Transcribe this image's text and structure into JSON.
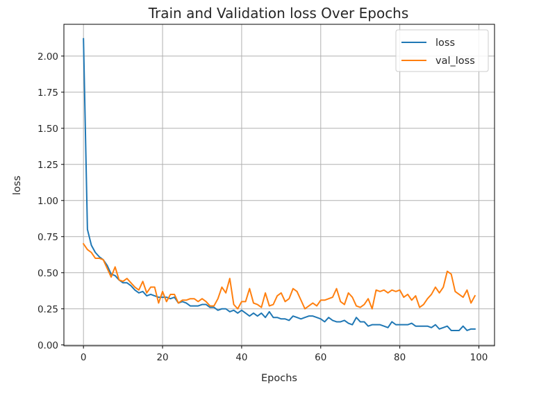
{
  "chart_data": {
    "type": "line",
    "title": "Train and Validation loss Over Epochs",
    "xlabel": "Epochs",
    "ylabel": "loss",
    "xlim": [
      -4.95,
      103.95
    ],
    "ylim": [
      -0.006,
      2.22
    ],
    "xticks": [
      0,
      20,
      40,
      60,
      80,
      100
    ],
    "yticks": [
      0.0,
      0.25,
      0.5,
      0.75,
      1.0,
      1.25,
      1.5,
      1.75,
      2.0
    ],
    "ytick_labels": [
      "0.00",
      "0.25",
      "0.50",
      "0.75",
      "1.00",
      "1.25",
      "1.50",
      "1.75",
      "2.00"
    ],
    "xtick_labels": [
      "0",
      "20",
      "40",
      "60",
      "80",
      "100"
    ],
    "grid": true,
    "legend_position": "top-right",
    "series": [
      {
        "name": "loss",
        "color": "#1f77b4",
        "x": [
          0,
          1,
          2,
          3,
          4,
          5,
          6,
          7,
          8,
          9,
          10,
          11,
          12,
          13,
          14,
          15,
          16,
          17,
          18,
          19,
          20,
          21,
          22,
          23,
          24,
          25,
          26,
          27,
          28,
          29,
          30,
          31,
          32,
          33,
          34,
          35,
          36,
          37,
          38,
          39,
          40,
          41,
          42,
          43,
          44,
          45,
          46,
          47,
          48,
          49,
          50,
          51,
          52,
          53,
          54,
          55,
          56,
          57,
          58,
          59,
          60,
          61,
          62,
          63,
          64,
          65,
          66,
          67,
          68,
          69,
          70,
          71,
          72,
          73,
          74,
          75,
          76,
          77,
          78,
          79,
          80,
          81,
          82,
          83,
          84,
          85,
          86,
          87,
          88,
          89,
          90,
          91,
          92,
          93,
          94,
          95,
          96,
          97,
          98,
          99
        ],
        "values": [
          2.12,
          0.8,
          0.69,
          0.64,
          0.61,
          0.59,
          0.55,
          0.49,
          0.48,
          0.45,
          0.43,
          0.43,
          0.41,
          0.38,
          0.36,
          0.37,
          0.34,
          0.35,
          0.34,
          0.33,
          0.33,
          0.33,
          0.32,
          0.33,
          0.29,
          0.3,
          0.29,
          0.27,
          0.27,
          0.27,
          0.28,
          0.28,
          0.26,
          0.26,
          0.24,
          0.25,
          0.25,
          0.23,
          0.24,
          0.22,
          0.24,
          0.22,
          0.2,
          0.22,
          0.2,
          0.22,
          0.19,
          0.23,
          0.19,
          0.19,
          0.18,
          0.18,
          0.17,
          0.2,
          0.19,
          0.18,
          0.19,
          0.2,
          0.2,
          0.19,
          0.18,
          0.16,
          0.19,
          0.17,
          0.16,
          0.16,
          0.17,
          0.15,
          0.14,
          0.19,
          0.16,
          0.16,
          0.13,
          0.14,
          0.14,
          0.14,
          0.13,
          0.12,
          0.16,
          0.14,
          0.14,
          0.14,
          0.14,
          0.15,
          0.13,
          0.13,
          0.13,
          0.13,
          0.12,
          0.14,
          0.11,
          0.12,
          0.13,
          0.1,
          0.1,
          0.1,
          0.13,
          0.1,
          0.11,
          0.11
        ]
      },
      {
        "name": "val_loss",
        "color": "#ff7f0e",
        "x": [
          0,
          1,
          2,
          3,
          4,
          5,
          6,
          7,
          8,
          9,
          10,
          11,
          12,
          13,
          14,
          15,
          16,
          17,
          18,
          19,
          20,
          21,
          22,
          23,
          24,
          25,
          26,
          27,
          28,
          29,
          30,
          31,
          32,
          33,
          34,
          35,
          36,
          37,
          38,
          39,
          40,
          41,
          42,
          43,
          44,
          45,
          46,
          47,
          48,
          49,
          50,
          51,
          52,
          53,
          54,
          55,
          56,
          57,
          58,
          59,
          60,
          61,
          62,
          63,
          64,
          65,
          66,
          67,
          68,
          69,
          70,
          71,
          72,
          73,
          74,
          75,
          76,
          77,
          78,
          79,
          80,
          81,
          82,
          83,
          84,
          85,
          86,
          87,
          88,
          89,
          90,
          91,
          92,
          93,
          94,
          95,
          96,
          97,
          98,
          99
        ],
        "values": [
          0.7,
          0.66,
          0.64,
          0.6,
          0.6,
          0.59,
          0.53,
          0.47,
          0.54,
          0.45,
          0.44,
          0.46,
          0.43,
          0.4,
          0.38,
          0.44,
          0.36,
          0.4,
          0.4,
          0.29,
          0.37,
          0.3,
          0.35,
          0.35,
          0.29,
          0.31,
          0.31,
          0.32,
          0.32,
          0.3,
          0.32,
          0.3,
          0.27,
          0.27,
          0.32,
          0.4,
          0.36,
          0.46,
          0.28,
          0.25,
          0.3,
          0.3,
          0.39,
          0.29,
          0.28,
          0.26,
          0.36,
          0.27,
          0.28,
          0.34,
          0.36,
          0.3,
          0.32,
          0.39,
          0.37,
          0.31,
          0.25,
          0.27,
          0.29,
          0.27,
          0.31,
          0.31,
          0.32,
          0.33,
          0.39,
          0.3,
          0.28,
          0.36,
          0.33,
          0.27,
          0.26,
          0.28,
          0.32,
          0.25,
          0.38,
          0.37,
          0.38,
          0.36,
          0.38,
          0.37,
          0.38,
          0.33,
          0.35,
          0.31,
          0.34,
          0.26,
          0.28,
          0.32,
          0.35,
          0.4,
          0.36,
          0.4,
          0.51,
          0.49,
          0.37,
          0.35,
          0.33,
          0.38,
          0.29,
          0.34
        ]
      }
    ]
  }
}
